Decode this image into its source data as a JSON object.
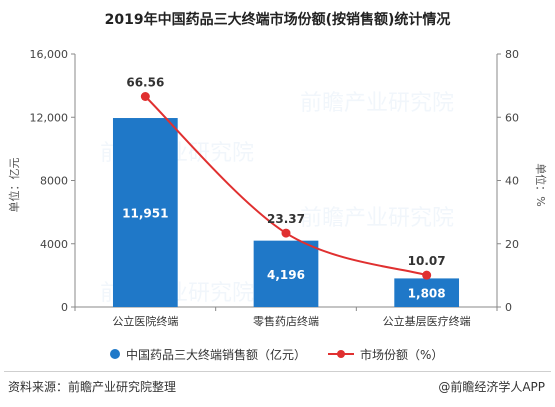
{
  "title": "2019年中国药品三大终端市场份额(按销售额)统计情况",
  "left_axis_label": "单位：亿元",
  "right_axis_label": "单位：%",
  "legend": {
    "bar": "中国药品三大终端销售额（亿元）",
    "line": "市场份额（%）"
  },
  "footer": {
    "source": "资料来源：前瞻产业研究院整理",
    "brand": "@前瞻经济学人APP"
  },
  "watermark": "前瞻产业研究院",
  "colors": {
    "bar": "#1f78c8",
    "line": "#e03030"
  },
  "chart_data": {
    "type": "bar",
    "categories": [
      "公立医院终端",
      "零售药店终端",
      "公立基层医疗终端"
    ],
    "series": [
      {
        "name": "中国药品三大终端销售额（亿元）",
        "type": "bar",
        "axis": "left",
        "values": [
          11951,
          4196,
          1808
        ]
      },
      {
        "name": "市场份额（%）",
        "type": "line",
        "axis": "right",
        "values": [
          66.56,
          23.37,
          10.07
        ]
      }
    ],
    "bar_labels": [
      "11,951",
      "4,196",
      "1,808"
    ],
    "line_labels": [
      "66.56",
      "23.37",
      "10.07"
    ],
    "y_left": {
      "ylim": [
        0,
        16000
      ],
      "ticks": [
        0,
        4000,
        8000,
        12000,
        16000
      ],
      "tick_labels": [
        "0",
        "4000",
        "8000",
        "12,000",
        "16,000"
      ]
    },
    "y_right": {
      "ylim": [
        0,
        80
      ],
      "ticks": [
        0,
        20,
        40,
        60,
        80
      ],
      "tick_labels": [
        "0",
        "20",
        "40",
        "60",
        "80"
      ]
    },
    "grid": false,
    "legend_position": "bottom"
  }
}
